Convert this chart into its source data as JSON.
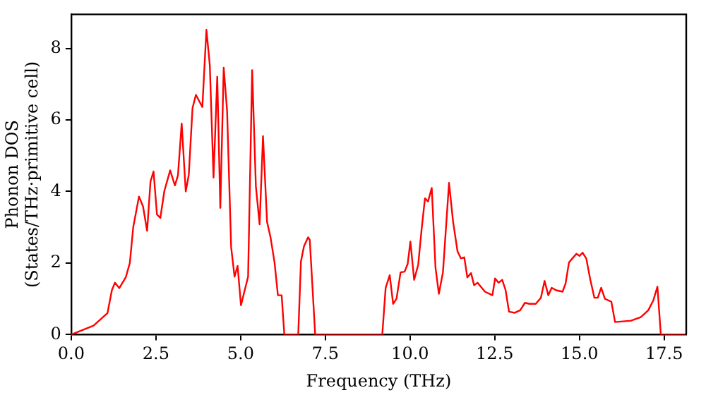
{
  "chart_data": {
    "type": "line",
    "xlabel": "Frequency (THz)",
    "ylabel": "Phonon DOS\n(States/THz·primitive cell)",
    "xlim": [
      0,
      18.15
    ],
    "xticks": [
      {
        "value": 0,
        "label": "0.0"
      },
      {
        "value": 2.5,
        "label": "2.5"
      },
      {
        "value": 5,
        "label": "5.0"
      },
      {
        "value": 7.5,
        "label": "7.5"
      },
      {
        "value": 10,
        "label": "10.0"
      },
      {
        "value": 12.5,
        "label": "12.5"
      },
      {
        "value": 15,
        "label": "15.0"
      },
      {
        "value": 17.5,
        "label": "17.5"
      }
    ],
    "ylim": [
      0,
      8.95
    ],
    "yticks": [
      0,
      2,
      4,
      6,
      8
    ],
    "grid": false,
    "legend": false,
    "marker": "none",
    "line_style": "solid",
    "series": [
      {
        "color": "#ff0000",
        "x": [
          0,
          0.66,
          1.07,
          1.2,
          1.29,
          1.42,
          1.61,
          1.73,
          1.83,
          2.0,
          2.12,
          2.24,
          2.34,
          2.43,
          2.53,
          2.63,
          2.75,
          2.92,
          3.06,
          3.15,
          3.26,
          3.38,
          3.47,
          3.58,
          3.68,
          3.87,
          3.99,
          4.09,
          4.2,
          4.31,
          4.4,
          4.5,
          4.6,
          4.72,
          4.82,
          4.91,
          5.01,
          5.22,
          5.34,
          5.45,
          5.56,
          5.66,
          5.78,
          5.88,
          6.0,
          6.1,
          6.21,
          6.29,
          6.7,
          6.78,
          6.87,
          6.99,
          7.04,
          7.2,
          9.18,
          9.28,
          9.4,
          9.5,
          9.6,
          9.72,
          9.84,
          9.93,
          10.01,
          10.12,
          10.24,
          10.34,
          10.44,
          10.53,
          10.64,
          10.75,
          10.85,
          10.97,
          11.15,
          11.27,
          11.4,
          11.5,
          11.6,
          11.69,
          11.8,
          11.89,
          11.99,
          12.21,
          12.43,
          12.51,
          12.61,
          12.72,
          12.82,
          12.92,
          13.09,
          13.25,
          13.39,
          13.52,
          13.71,
          13.86,
          13.97,
          14.08,
          14.18,
          14.31,
          14.5,
          14.59,
          14.69,
          14.79,
          14.91,
          15.0,
          15.09,
          15.2,
          15.32,
          15.44,
          15.54,
          15.64,
          15.75,
          15.94,
          16.05,
          16.52,
          16.81,
          17.03,
          17.18,
          17.3,
          17.4,
          18.15
        ],
        "values": [
          0,
          0.25,
          0.6,
          1.24,
          1.45,
          1.3,
          1.6,
          2.0,
          3.0,
          3.86,
          3.58,
          2.9,
          4.28,
          4.56,
          3.36,
          3.26,
          4.02,
          4.59,
          4.17,
          4.45,
          5.9,
          4.0,
          4.47,
          6.33,
          6.7,
          6.36,
          8.52,
          7.53,
          4.39,
          7.21,
          3.54,
          7.46,
          6.26,
          2.44,
          1.62,
          1.92,
          0.82,
          1.62,
          7.39,
          4.14,
          3.08,
          5.55,
          3.15,
          2.73,
          2.02,
          1.1,
          1.1,
          0,
          0,
          2.05,
          2.47,
          2.72,
          2.65,
          0,
          0,
          1.31,
          1.66,
          0.86,
          1.0,
          1.74,
          1.76,
          1.98,
          2.6,
          1.53,
          1.95,
          2.94,
          3.81,
          3.72,
          4.1,
          1.88,
          1.14,
          1.74,
          4.24,
          3.15,
          2.33,
          2.13,
          2.16,
          1.6,
          1.72,
          1.38,
          1.45,
          1.2,
          1.1,
          1.57,
          1.45,
          1.53,
          1.24,
          0.64,
          0.61,
          0.68,
          0.89,
          0.86,
          0.86,
          1.03,
          1.5,
          1.1,
          1.31,
          1.24,
          1.2,
          1.43,
          2.02,
          2.13,
          2.26,
          2.2,
          2.29,
          2.13,
          1.53,
          1.03,
          1.03,
          1.31,
          1.0,
          0.92,
          0.35,
          0.39,
          0.49,
          0.68,
          0.96,
          1.34,
          0,
          0
        ]
      }
    ]
  }
}
